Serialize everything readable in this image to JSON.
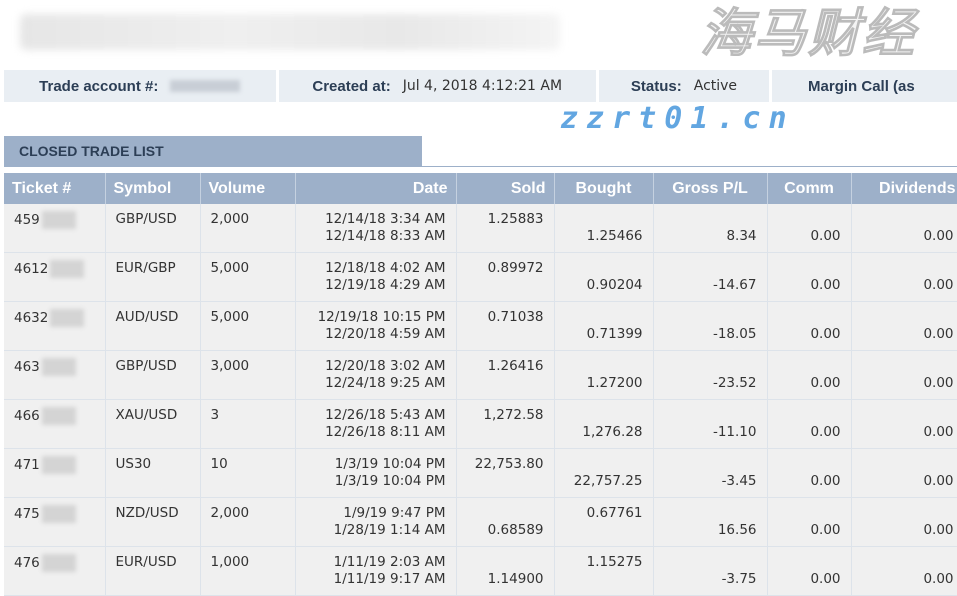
{
  "info": {
    "account_label": "Trade account #:",
    "created_label": "Created at:",
    "created_value": "Jul 4, 2018 4:12:21 AM",
    "status_label": "Status:",
    "status_value": "Active",
    "margin_label": "Margin Call (as"
  },
  "section_title": "CLOSED TRADE LIST",
  "columns": [
    "Ticket #",
    "Symbol",
    "Volume",
    "Date",
    "Sold",
    "Bought",
    "Gross P/L",
    "Comm",
    "Dividends"
  ],
  "rows": [
    {
      "ticket": "459",
      "symbol": "GBP/USD",
      "volume": "2,000",
      "date_open": "12/14/18 3:34 AM",
      "date_close": "12/14/18 8:33 AM",
      "sold": "1.25883",
      "bought": "1.25466",
      "sell_first": true,
      "gross": "8.34",
      "comm": "0.00",
      "div": "0.00"
    },
    {
      "ticket": "4612",
      "symbol": "EUR/GBP",
      "volume": "5,000",
      "date_open": "12/18/18 4:02 AM",
      "date_close": "12/19/18 4:29 AM",
      "sold": "0.89972",
      "bought": "0.90204",
      "sell_first": true,
      "gross": "-14.67",
      "comm": "0.00",
      "div": "0.00"
    },
    {
      "ticket": "4632",
      "symbol": "AUD/USD",
      "volume": "5,000",
      "date_open": "12/19/18 10:15 PM",
      "date_close": "12/20/18 4:59 AM",
      "sold": "0.71038",
      "bought": "0.71399",
      "sell_first": true,
      "gross": "-18.05",
      "comm": "0.00",
      "div": "0.00"
    },
    {
      "ticket": "463",
      "symbol": "GBP/USD",
      "volume": "3,000",
      "date_open": "12/20/18 3:02 AM",
      "date_close": "12/24/18 9:25 AM",
      "sold": "1.26416",
      "bought": "1.27200",
      "sell_first": true,
      "gross": "-23.52",
      "comm": "0.00",
      "div": "0.00"
    },
    {
      "ticket": "466",
      "symbol": "XAU/USD",
      "volume": "3",
      "date_open": "12/26/18 5:43 AM",
      "date_close": "12/26/18 8:11 AM",
      "sold": "1,272.58",
      "bought": "1,276.28",
      "sell_first": true,
      "gross": "-11.10",
      "comm": "0.00",
      "div": "0.00"
    },
    {
      "ticket": "471",
      "symbol": "US30",
      "volume": "10",
      "date_open": "1/3/19 10:04 PM",
      "date_close": "1/3/19 10:04 PM",
      "sold": "22,753.80",
      "bought": "22,757.25",
      "sell_first": true,
      "gross": "-3.45",
      "comm": "0.00",
      "div": "0.00"
    },
    {
      "ticket": "475",
      "symbol": "NZD/USD",
      "volume": "2,000",
      "date_open": "1/9/19 9:47 PM",
      "date_close": "1/28/19 1:14 AM",
      "sold": "0.68589",
      "bought": "0.67761",
      "sell_first": false,
      "gross": "16.56",
      "comm": "0.00",
      "div": "0.00"
    },
    {
      "ticket": "476",
      "symbol": "EUR/USD",
      "volume": "1,000",
      "date_open": "1/11/19 2:03 AM",
      "date_close": "1/11/19 9:17 AM",
      "sold": "1.14900",
      "bought": "1.15275",
      "sell_first": false,
      "gross": "-3.75",
      "comm": "0.00",
      "div": "0.00"
    }
  ],
  "watermark": {
    "text": "海马财经",
    "url": "zzrt01.cn"
  }
}
